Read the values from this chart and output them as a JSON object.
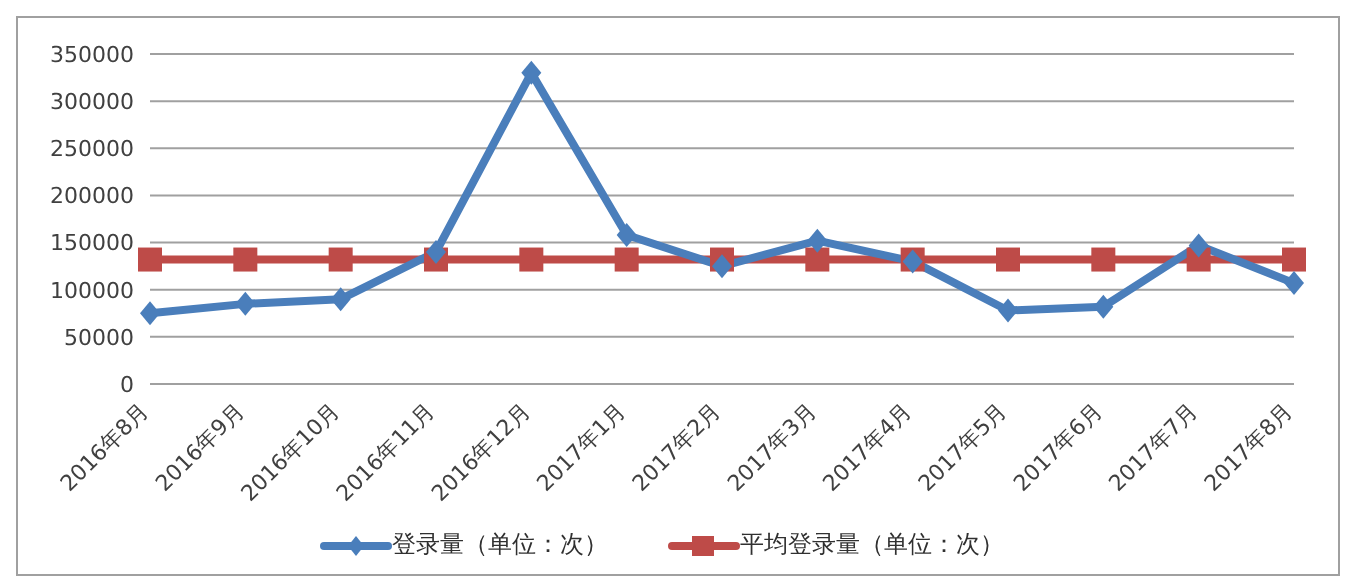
{
  "chart_data": {
    "type": "line",
    "categories": [
      "2016年8月",
      "2016年9月",
      "2016年10月",
      "2016年11月",
      "2016年12月",
      "2017年1月",
      "2017年2月",
      "2017年3月",
      "2017年4月",
      "2017年5月",
      "2017年6月",
      "2017年7月",
      "2017年8月"
    ],
    "series": [
      {
        "name": "登录量（单位：次）",
        "color": "#4a7ebb",
        "marker": "diamond",
        "values": [
          75000,
          85000,
          90000,
          140000,
          330000,
          158000,
          125000,
          152000,
          130000,
          78000,
          82000,
          147000,
          107000
        ]
      },
      {
        "name": "平均登录量（单位：次）",
        "color": "#be4b48",
        "marker": "square",
        "values": [
          132000,
          132000,
          132000,
          132000,
          132000,
          132000,
          132000,
          132000,
          132000,
          132000,
          132000,
          132000,
          132000
        ]
      }
    ],
    "ylim": [
      0,
      350000
    ],
    "yticks": [
      0,
      50000,
      100000,
      150000,
      200000,
      250000,
      300000,
      350000
    ],
    "grid": "y",
    "legend": "bottom"
  }
}
